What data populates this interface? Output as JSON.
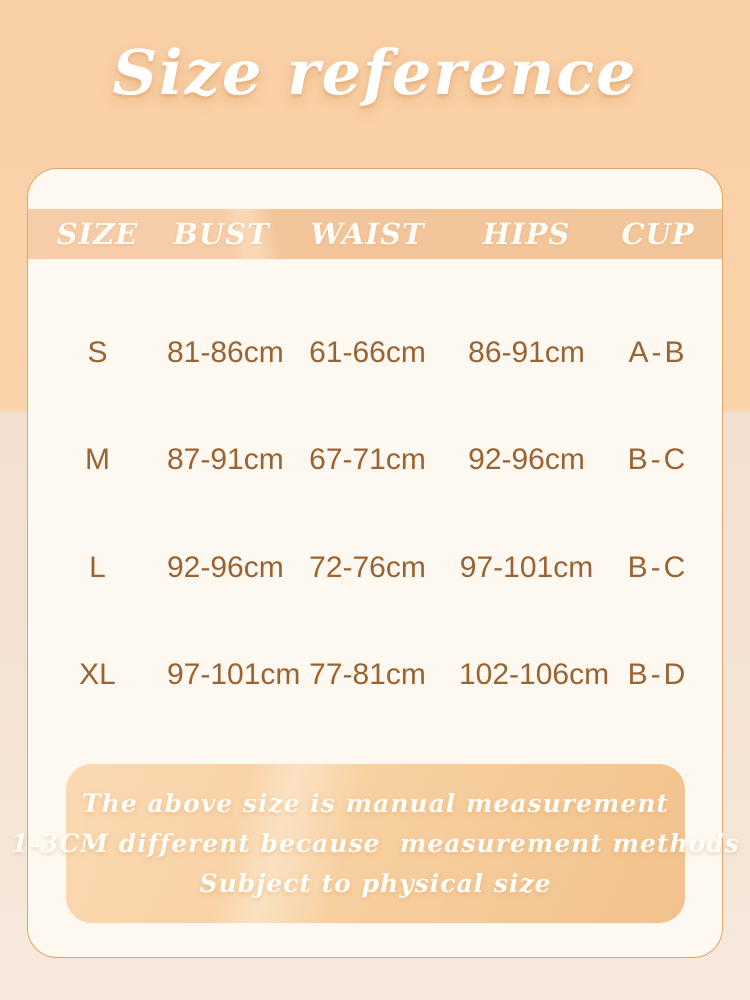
{
  "page": {
    "title": "Size reference"
  },
  "chart_data": {
    "type": "table",
    "title": "Size reference",
    "columns": [
      "SIZE",
      "BUST",
      "WAIST",
      "HIPS",
      "CUP"
    ],
    "rows": [
      [
        "S",
        "81-86cm",
        "61-66cm",
        "86-91cm",
        "A-B"
      ],
      [
        "M",
        "87-91cm",
        "67-71cm",
        "92-96cm",
        "B-C"
      ],
      [
        "L",
        "92-96cm",
        "72-76cm",
        "97-101cm",
        "B-C"
      ],
      [
        "XL",
        "97-101cm",
        "77-81cm",
        "102-106cm",
        "B-D"
      ]
    ],
    "note_lines": [
      "The above size is manual measurement",
      "1-3CM different because  measurement methods",
      "Subject to physical size"
    ],
    "layout_hints": {
      "legend": "none",
      "grid": "off"
    }
  },
  "colors": {
    "background_top": "#fbd3ab",
    "background_bottom": "#f5e5d6",
    "card_background": "#fdf9f1",
    "card_border": "#e2a467",
    "header_band": "#f3c59b",
    "data_text": "#9b6332",
    "light_text": "#ffffff",
    "note_box": "#f6cc9e"
  }
}
